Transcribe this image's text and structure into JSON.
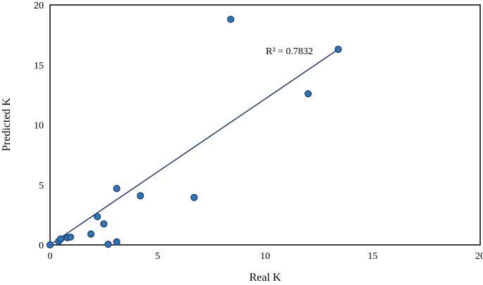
{
  "chart_data": {
    "type": "scatter",
    "title": "",
    "xlabel": "Real K",
    "ylabel": "Predicted K",
    "xlim": [
      0,
      20
    ],
    "ylim": [
      0,
      20
    ],
    "xticks": [
      "0",
      "5",
      "10",
      "15",
      "20"
    ],
    "yticks": [
      "0",
      "5",
      "10",
      "15",
      "20"
    ],
    "grid": false,
    "legend": "none",
    "series": [
      {
        "marker_color": "#2E75B6",
        "marker_edge": "#1F3864",
        "points": [
          [
            0.0,
            0.0
          ],
          [
            0.4,
            0.3
          ],
          [
            0.5,
            0.5
          ],
          [
            0.8,
            0.6
          ],
          [
            0.95,
            0.65
          ],
          [
            1.9,
            0.9
          ],
          [
            2.2,
            2.35
          ],
          [
            2.5,
            1.75
          ],
          [
            2.7,
            0.05
          ],
          [
            3.1,
            0.25
          ],
          [
            3.1,
            4.7
          ],
          [
            4.2,
            4.1
          ],
          [
            6.7,
            3.95
          ],
          [
            8.4,
            18.8
          ],
          [
            12.0,
            12.6
          ],
          [
            13.4,
            16.3
          ]
        ]
      }
    ],
    "trendline": {
      "type": "linear",
      "color": "#1F3864",
      "from": [
        0.0,
        0.0
      ],
      "to": [
        13.4,
        16.3
      ]
    },
    "annotation": "R² = 0.7832"
  }
}
